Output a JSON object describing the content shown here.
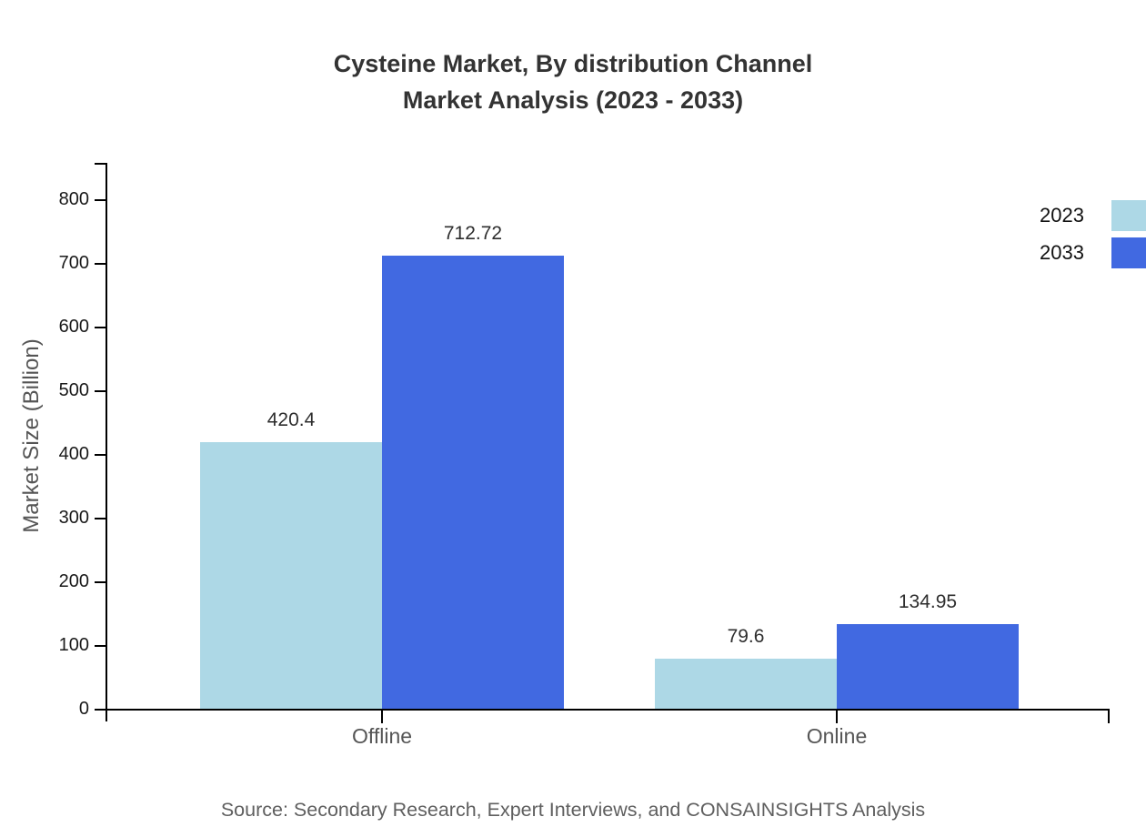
{
  "title": {
    "line1": "Cysteine Market, By distribution Channel",
    "line2": "Market Analysis (2023 - 2033)"
  },
  "source": "Source: Secondary Research, Expert Interviews, and CONSAINSIGHTS Analysis",
  "chart_data": {
    "type": "bar",
    "title": "Cysteine Market, By distribution Channel Market Analysis (2023 - 2033)",
    "categories": [
      "Offline",
      "Online"
    ],
    "series": [
      {
        "name": "2023",
        "color": "#ADD8E6",
        "values": [
          420.4,
          79.6
        ]
      },
      {
        "name": "2033",
        "color": "#4169E1",
        "values": [
          712.72,
          134.95
        ]
      }
    ],
    "xlabel": "",
    "ylabel": "Market Size (Billion)",
    "ylim": [
      0,
      857
    ],
    "yticks": [
      0,
      100,
      200,
      300,
      400,
      500,
      600,
      700,
      800
    ],
    "grid": false,
    "value_labels": true,
    "legend_position": "top-right",
    "axis_color": "#000000",
    "title_color": "#333333",
    "tick_label_color": "#1a1a1a",
    "category_label_color": "#555555",
    "source_color": "#5f5f5f"
  }
}
